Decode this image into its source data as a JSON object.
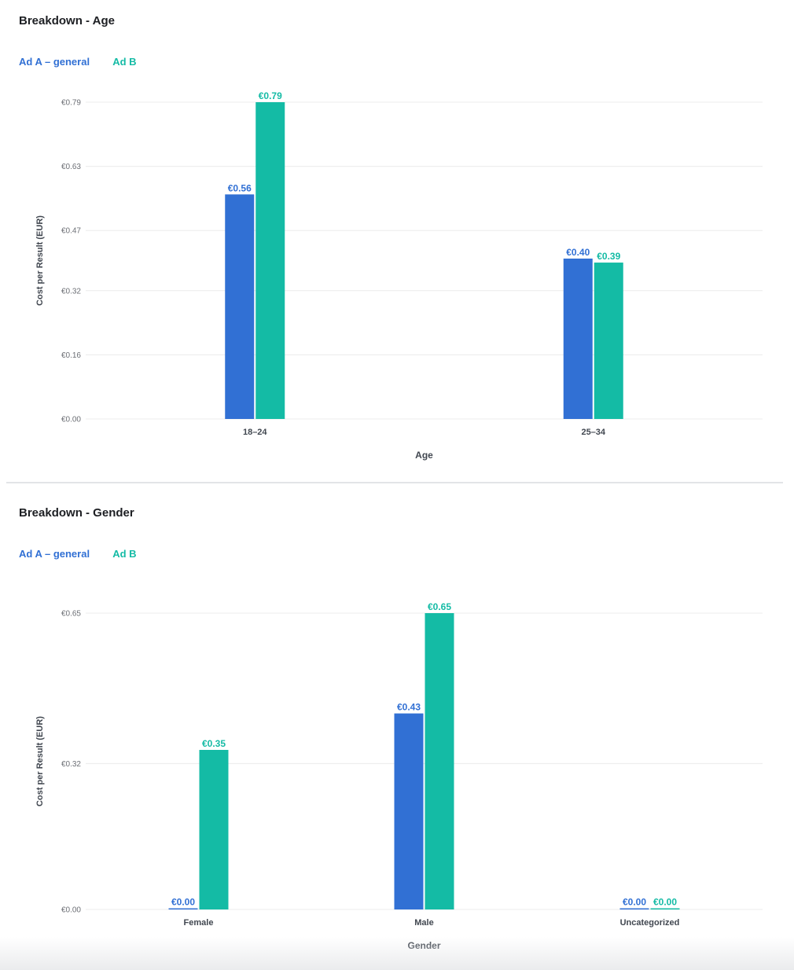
{
  "colors": {
    "ad_a": "#3170d4",
    "ad_b": "#14bba5",
    "grid": "#ececec",
    "tick_text": "#6c6f75",
    "axis_title": "#414750"
  },
  "sections": [
    {
      "title": "Breakdown - Age",
      "legend": {
        "ad_a": "Ad A – general",
        "ad_b": "Ad B"
      }
    },
    {
      "title": "Breakdown - Gender",
      "legend": {
        "ad_a": "Ad A – general",
        "ad_b": "Ad B"
      }
    }
  ],
  "chart_data": [
    {
      "type": "bar",
      "title": "Breakdown - Age",
      "xlabel": "Age",
      "ylabel": "Cost per Result (EUR)",
      "categories": [
        "18–24",
        "25–34"
      ],
      "series": [
        {
          "name": "Ad A – general",
          "values": [
            0.56,
            0.4
          ],
          "labels": [
            "€0.56",
            "€0.40"
          ]
        },
        {
          "name": "Ad B",
          "values": [
            0.79,
            0.39
          ],
          "labels": [
            "€0.79",
            "€0.39"
          ]
        }
      ],
      "yticks": [
        0,
        0.16,
        0.32,
        0.47,
        0.63,
        0.79
      ],
      "ytick_labels": [
        "€0.00",
        "€0.16",
        "€0.32",
        "€0.47",
        "€0.63",
        "€0.79"
      ],
      "ylim": [
        0,
        0.79
      ],
      "grid": true,
      "legend_position": "top-left"
    },
    {
      "type": "bar",
      "title": "Breakdown - Gender",
      "xlabel": "Gender",
      "ylabel": "Cost per Result (EUR)",
      "categories": [
        "Female",
        "Male",
        "Uncategorized"
      ],
      "series": [
        {
          "name": "Ad A – general",
          "values": [
            0.0,
            0.43,
            0.0
          ],
          "labels": [
            "€0.00",
            "€0.43",
            "€0.00"
          ]
        },
        {
          "name": "Ad B",
          "values": [
            0.35,
            0.65,
            0.0
          ],
          "labels": [
            "€0.35",
            "€0.65",
            "€0.00"
          ]
        }
      ],
      "yticks": [
        0,
        0.32,
        0.65
      ],
      "ytick_labels": [
        "€0.00",
        "€0.32",
        "€0.65"
      ],
      "ylim": [
        0,
        0.65
      ],
      "grid": true,
      "legend_position": "top-left"
    }
  ]
}
